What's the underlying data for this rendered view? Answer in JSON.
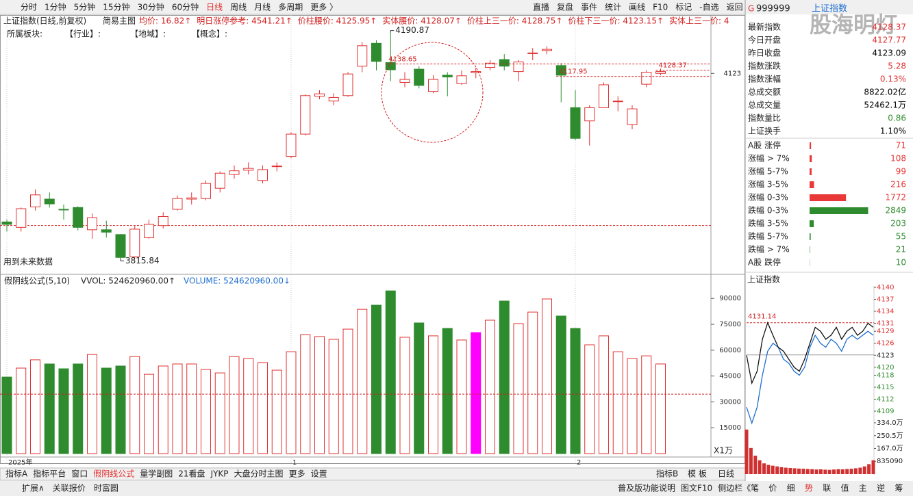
{
  "toolbar": {
    "tabs": [
      "分时",
      "1分钟",
      "5分钟",
      "15分钟",
      "30分钟",
      "60分钟",
      "日线",
      "周线",
      "月线",
      "多周期",
      "更多 〉"
    ],
    "active": 6,
    "buttons": [
      "直播",
      "复盘",
      "事件",
      "统计",
      "画线",
      "F10",
      "标记",
      "-自选",
      "返回"
    ]
  },
  "header": {
    "title": "上证指数(日线,前复权)",
    "mode": "简易主图",
    "indicators": [
      "均价: 16.82↑",
      "明日涨停参考: 4541.21↑",
      "价柱腰价: 4125.95↑",
      "实体腰价: 4128.07↑",
      "价柱上三一价: 4128.75↑",
      "价柱下三一价: 4123.15↑",
      "实体上三一价: 4"
    ],
    "sectors": [
      "所属板块:",
      "【行业】:",
      "【地域】:",
      "【概念】:"
    ]
  },
  "main_chart": {
    "ylim": [
      3790,
      4220
    ],
    "up_color": "#e03030",
    "down_color": "#2e8b2e",
    "candles": [
      {
        "o": 3876,
        "h": 3880,
        "l": 3860,
        "c": 3872
      },
      {
        "o": 3867,
        "h": 3900,
        "l": 3860,
        "c": 3898
      },
      {
        "o": 3901,
        "h": 3930,
        "l": 3895,
        "c": 3921
      },
      {
        "o": 3914,
        "h": 3925,
        "l": 3900,
        "c": 3906
      },
      {
        "o": 3897,
        "h": 3905,
        "l": 3880,
        "c": 3896
      },
      {
        "o": 3900,
        "h": 3902,
        "l": 3862,
        "c": 3867
      },
      {
        "o": 3863,
        "h": 3890,
        "l": 3848,
        "c": 3883
      },
      {
        "o": 3863,
        "h": 3878,
        "l": 3850,
        "c": 3859
      },
      {
        "o": 3855,
        "h": 3856,
        "l": 3815.84,
        "c": 3817
      },
      {
        "o": 3818,
        "h": 3870,
        "l": 3816,
        "c": 3864
      },
      {
        "o": 3850,
        "h": 3880,
        "l": 3848,
        "c": 3872
      },
      {
        "o": 3870,
        "h": 3892,
        "l": 3865,
        "c": 3885
      },
      {
        "o": 3897,
        "h": 3920,
        "l": 3895,
        "c": 3915
      },
      {
        "o": 3914,
        "h": 3925,
        "l": 3905,
        "c": 3916
      },
      {
        "o": 3915,
        "h": 3945,
        "l": 3912,
        "c": 3940
      },
      {
        "o": 3932,
        "h": 3960,
        "l": 3925,
        "c": 3957
      },
      {
        "o": 3955,
        "h": 3970,
        "l": 3948,
        "c": 3961
      },
      {
        "o": 3962,
        "h": 3975,
        "l": 3955,
        "c": 3965
      },
      {
        "o": 3945,
        "h": 3970,
        "l": 3940,
        "c": 3963
      },
      {
        "o": 3968,
        "h": 3975,
        "l": 3960,
        "c": 3969
      },
      {
        "o": 3985,
        "h": 4025,
        "l": 3982,
        "c": 4022
      },
      {
        "o": 4022,
        "h": 4088,
        "l": 4020,
        "c": 4086
      },
      {
        "o": 4085,
        "h": 4095,
        "l": 4080,
        "c": 4089
      },
      {
        "o": 4077,
        "h": 4090,
        "l": 4070,
        "c": 4083
      },
      {
        "o": 4086,
        "h": 4125,
        "l": 4084,
        "c": 4122
      },
      {
        "o": 4135,
        "h": 4175,
        "l": 4125,
        "c": 4169
      },
      {
        "o": 4173,
        "h": 4178,
        "l": 4128,
        "c": 4143
      },
      {
        "o": 4141,
        "h": 4190.87,
        "l": 4110,
        "c": 4129
      },
      {
        "o": 4108,
        "h": 4125,
        "l": 4100,
        "c": 4113
      },
      {
        "o": 4130,
        "h": 4135,
        "l": 4098,
        "c": 4103
      },
      {
        "o": 4093,
        "h": 4120,
        "l": 4090,
        "c": 4113
      },
      {
        "o": 4120,
        "h": 4125,
        "l": 4085,
        "c": 4117
      },
      {
        "o": 4106,
        "h": 4128,
        "l": 4104,
        "c": 4119
      },
      {
        "o": 4124,
        "h": 4132,
        "l": 4115,
        "c": 4126
      },
      {
        "o": 4133,
        "h": 4145,
        "l": 4128,
        "c": 4140
      },
      {
        "o": 4146,
        "h": 4155,
        "l": 4128,
        "c": 4135
      },
      {
        "o": 4126,
        "h": 4145,
        "l": 4110,
        "c": 4142
      },
      {
        "o": 4156,
        "h": 4165,
        "l": 4145,
        "c": 4157
      },
      {
        "o": 4161,
        "h": 4168,
        "l": 4155,
        "c": 4163
      },
      {
        "o": 4136,
        "h": 4140,
        "l": 4075,
        "c": 4120
      },
      {
        "o": 4066,
        "h": 4095,
        "l": 4012,
        "c": 4015
      },
      {
        "o": 4044,
        "h": 4070,
        "l": 4003,
        "c": 4066
      },
      {
        "o": 4066,
        "h": 4108,
        "l": 4066,
        "c": 4104
      },
      {
        "o": 4076,
        "h": 4085,
        "l": 4060,
        "c": 4077
      },
      {
        "o": 4038,
        "h": 4070,
        "l": 4030,
        "c": 4064
      },
      {
        "o": 4105,
        "h": 4128.37,
        "l": 4100,
        "c": 4125
      },
      {
        "o": 4123,
        "h": 4131,
        "l": 4120,
        "c": 4126
      }
    ],
    "annotations": [
      {
        "value": 4190.87,
        "index": 27,
        "line": false
      },
      {
        "value": 3815.84,
        "index": 8,
        "line": false
      },
      {
        "value": 4138.65,
        "index": 27,
        "line": true
      },
      {
        "value": 4117.95,
        "index": 39,
        "line": true
      },
      {
        "value": 4128.37,
        "index": 46,
        "line": true
      }
    ],
    "support_line": 3870,
    "price_label": 4123,
    "note": "用到未来数据"
  },
  "volume_chart": {
    "title": "假阴线公式(5,10)",
    "vvol": "VVOL: 524620960.00↑",
    "volume": "VOLUME: 524620960.00↓",
    "ylim": [
      0,
      102400
    ],
    "yticks": [
      15000,
      30000,
      45000,
      60000,
      75000,
      90000
    ],
    "values": [
      44400,
      49600,
      54400,
      52000,
      49200,
      52000,
      57500,
      49600,
      50800,
      56300,
      46000,
      50800,
      52000,
      52000,
      48800,
      46800,
      56300,
      55200,
      52800,
      48400,
      59100,
      69000,
      67900,
      66300,
      72200,
      83700,
      86100,
      94400,
      67500,
      75800,
      68300,
      72600,
      65900,
      70200,
      77400,
      88500,
      75400,
      82100,
      89700,
      79800,
      72600,
      63100,
      68300,
      59100,
      55200,
      56700,
      52000
    ],
    "highlight_index": 33,
    "highlight_color": "#ff00ff",
    "ref_line": 34500,
    "unit": "X1万"
  },
  "x_labels": [
    {
      "text": "2025年",
      "index": 0
    },
    {
      "text": "1",
      "index": 20
    },
    {
      "text": "2",
      "index": 40
    }
  ],
  "bottom_tabs": {
    "left": [
      "指标A",
      "指标平台",
      "窗口",
      "假阴线公式",
      "量学副图",
      "21看盘",
      "JYKP",
      "大盘分时主图",
      "更多",
      "设置"
    ],
    "active": 3,
    "right": [
      "指标B",
      "模 板",
      "日线"
    ]
  },
  "status_bar": {
    "left": [
      "扩展∧",
      "关联报价",
      "时富圆"
    ],
    "right": [
      "普及版功能说明",
      "图文F10",
      "侧边栏《"
    ],
    "side_tabs": [
      "笔",
      "价",
      "细",
      "势",
      "联",
      "值",
      "主",
      "逆",
      "筹"
    ],
    "active_side": 3
  },
  "quote": {
    "flag": "G",
    "code": "999999",
    "name": "上证指数",
    "watermark": "股海明灯",
    "stats": [
      {
        "label": "最新指数",
        "value": "4128.37",
        "color": "#e03030"
      },
      {
        "label": "今日开盘",
        "value": "4127.77",
        "color": "#e03030"
      },
      {
        "label": "昨日收盘",
        "value": "4123.09",
        "color": "#000000"
      },
      {
        "label": "指数涨跌",
        "value": "5.28",
        "color": "#e03030"
      },
      {
        "label": "指数涨幅",
        "value": "0.13%",
        "color": "#e03030"
      },
      {
        "label": "总成交额",
        "value": "8822.02亿",
        "color": "#000000"
      },
      {
        "label": "总成交量",
        "value": "52462.1万",
        "color": "#000000"
      },
      {
        "label": "指数量比",
        "value": "0.86",
        "color": "#2e8b2e"
      },
      {
        "label": "上证换手",
        "value": "1.10%",
        "color": "#000000"
      }
    ],
    "breadth": [
      {
        "label": "A股 涨停",
        "count": 71,
        "color": "#e83838"
      },
      {
        "label": "涨幅 > 7%",
        "count": 108,
        "color": "#e83838"
      },
      {
        "label": "涨幅 5-7%",
        "count": 99,
        "color": "#e83838"
      },
      {
        "label": "涨幅 3-5%",
        "count": 216,
        "color": "#e83838"
      },
      {
        "label": "涨幅 0-3%",
        "count": 1772,
        "color": "#e83838"
      },
      {
        "label": "跌幅 0-3%",
        "count": 2849,
        "color": "#2e8b2e"
      },
      {
        "label": "跌幅 3-5%",
        "count": 203,
        "color": "#2e8b2e"
      },
      {
        "label": "跌幅 5-7%",
        "count": 55,
        "color": "#2e8b2e"
      },
      {
        "label": "跌幅 > 7%",
        "count": 21,
        "color": "#2e8b2e"
      },
      {
        "label": "A股 跌停",
        "count": 10,
        "color": "#2e8b2e"
      }
    ]
  },
  "intraday": {
    "title": "上证指数",
    "ylim": [
      4109,
      4140
    ],
    "ticks": [
      4140,
      4137,
      4134,
      4131,
      4129,
      4126,
      4123,
      4120,
      4118,
      4115,
      4112,
      4109
    ],
    "base": 4123.09,
    "high": 4131.14,
    "price": [
      4123,
      4116,
      4119,
      4127,
      4131.14,
      4128,
      4125,
      4124,
      4122,
      4120,
      4119,
      4122,
      4126,
      4130,
      4129,
      4127,
      4128,
      4130,
      4127,
      4129,
      4130,
      4128,
      4129,
      4131,
      4130
    ],
    "price_color": "#111111",
    "avg": [
      4110,
      4106,
      4110,
      4118,
      4124,
      4126,
      4125,
      4122,
      4121,
      4119,
      4118,
      4120,
      4125,
      4128,
      4126,
      4125,
      4127,
      4126,
      4124,
      4127,
      4128,
      4127,
      4128,
      4129,
      4128
    ],
    "avg_color": "#1f6fd0",
    "volume_ylim": [
      0,
      3340000
    ],
    "volume_ticks": [
      {
        "value": 3340000,
        "label": "334.0万"
      },
      {
        "value": 2505000,
        "label": "250.5万"
      },
      {
        "value": 1670000,
        "label": "167.0万"
      },
      835090
    ],
    "volume": [
      2900000,
      1700000,
      1200000,
      900000,
      700000,
      600000,
      550000,
      500000,
      450000,
      420000,
      400000,
      380000,
      360000,
      350000,
      330000,
      320000,
      300000,
      310000,
      290000,
      280000,
      300000,
      320000,
      310000,
      330000,
      350000,
      380000,
      420000,
      500000,
      650000,
      900000
    ],
    "volume_color": "#d03030"
  }
}
